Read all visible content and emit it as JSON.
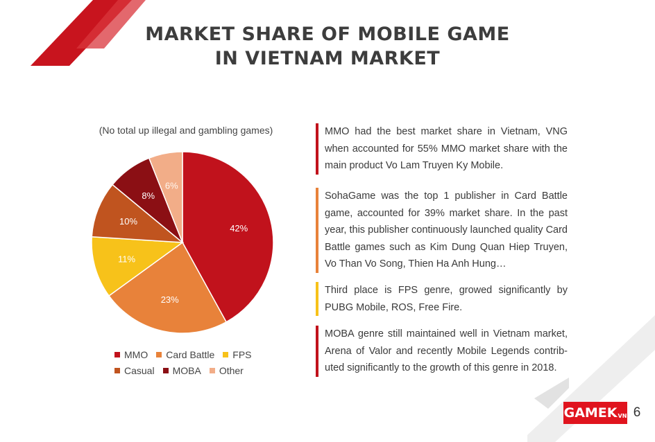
{
  "header": {
    "title_line1": "MARKET SHARE OF MOBILE GAME",
    "title_line2": "IN VIETNAM MARKET"
  },
  "chart_data": {
    "type": "pie",
    "subtitle": "(No total up illegal and gambling games)",
    "categories": [
      "MMO",
      "Card Battle",
      "FPS",
      "Casual",
      "MOBA",
      "Other"
    ],
    "values": [
      42,
      23,
      11,
      10,
      8,
      6
    ],
    "labels": [
      "42%",
      "23%",
      "11%",
      "10%",
      "8%",
      "6%"
    ],
    "colors": [
      "#c1121c",
      "#e8823a",
      "#f7c21a",
      "#c0541f",
      "#8b0f14",
      "#f2ad88"
    ],
    "legend_position": "bottom"
  },
  "paragraphs": [
    {
      "text": "MMO had the best market share in Vietnam, VNG when accounted for 55% MMO market share with the main product Vo Lam Truyen Ky Mobile.",
      "color": "#c1121c"
    },
    {
      "text": "SohaGame was the top 1 publisher in Card Battle game, accounted for 39% market share. In the past year, this publisher continuously launched quality Card Battle games such as Kim Dung Quan Hiep Truyen, Vo Than Vo Song, Thien Ha Anh Hung…",
      "color": "#e8823a"
    },
    {
      "text": "Third place is FPS genre, growed significantly by PUBG Mobile, ROS, Free Fire.",
      "color": "#f7c21a"
    },
    {
      "text": "MOBA genre still maintained well in Vietnam market, Arena of Valor and recently Mobile Legends contrib- uted significantly to the growth of this genre in 2018.",
      "color": "#c1121c"
    }
  ],
  "logo": {
    "brand": "GAMEK",
    "suffix": "VN",
    "page": "6"
  }
}
